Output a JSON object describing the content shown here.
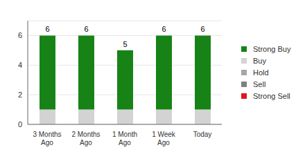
{
  "chart_data": {
    "type": "bar",
    "stacked": true,
    "grid": true,
    "legend": "right",
    "categories": [
      "3 Months Ago",
      "2 Months Ago",
      "1 Month Ago",
      "1 Week Ago",
      "Today"
    ],
    "series": [
      {
        "name": "Strong Buy",
        "color": "#178317",
        "values": [
          5,
          5,
          4,
          5,
          5
        ]
      },
      {
        "name": "Buy",
        "color": "#d3d3d3",
        "values": [
          1,
          1,
          1,
          1,
          1
        ]
      },
      {
        "name": "Hold",
        "color": "#a6a6a6",
        "values": [
          0,
          0,
          0,
          0,
          0
        ]
      },
      {
        "name": "Sell",
        "color": "#7f7f7f",
        "values": [
          0,
          0,
          0,
          0,
          0
        ]
      },
      {
        "name": "Strong Sell",
        "color": "#e0141e",
        "values": [
          0,
          0,
          0,
          0,
          0
        ]
      }
    ],
    "totals": [
      6,
      6,
      5,
      6,
      6
    ],
    "ylim": [
      0,
      7
    ],
    "yticks": [
      0,
      2,
      4,
      6
    ]
  }
}
